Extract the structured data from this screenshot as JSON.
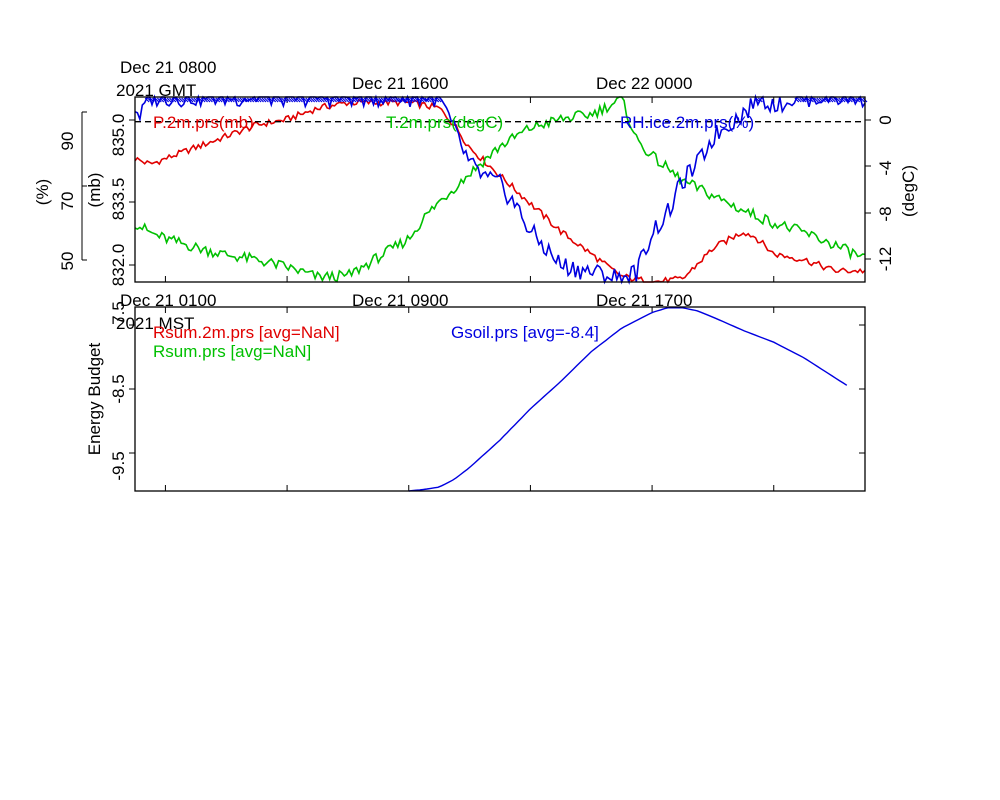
{
  "chart_data": [
    {
      "type": "line",
      "panel": "upper",
      "top_time_labels": {
        "first_line1": "Dec 21 0800",
        "first_line2": "2021 GMT",
        "second": "Dec 21 1600",
        "third": "Dec 22 0000"
      },
      "left_axis_rh": {
        "label": "(%)",
        "ticks": [
          "50",
          "70",
          "90"
        ],
        "range": [
          45,
          100
        ]
      },
      "left_axis_p": {
        "label": "(mb)",
        "ticks": [
          "832.0",
          "833.5",
          "835.0"
        ],
        "range": [
          832.0,
          835.3
        ]
      },
      "right_axis_t": {
        "label": "(degC)",
        "ticks": [
          "0",
          "-4",
          "-8",
          "-12"
        ],
        "range": [
          -13.0,
          2.0
        ]
      },
      "reference_line": {
        "value": 0,
        "axis": "degC",
        "style": "dashed"
      },
      "legend": [
        "P.2m.prs(mb)",
        "T.2m.prs(degC)",
        "RH.ice.2m.prs(%)"
      ],
      "colors": {
        "P.2m.prs(mb)": "#e00000",
        "T.2m.prs(degC)": "#00c000",
        "RH.ice.2m.prs(%)": "#0000e0"
      },
      "series": [
        {
          "name": "P.2m.prs(mb)",
          "axis": "mb",
          "x_hours_mst": [
            0,
            0.5,
            1,
            2,
            3,
            4,
            5,
            6,
            7,
            8,
            8.5,
            9,
            10,
            10.5,
            11,
            12,
            13,
            14,
            15,
            15.6,
            16,
            17,
            18,
            19,
            20,
            20.4,
            21,
            22,
            23,
            23.9
          ],
          "values": [
            834.2,
            834.1,
            834.2,
            834.4,
            834.6,
            834.8,
            834.9,
            835.1,
            835.2,
            835.2,
            835.2,
            835.2,
            835.1,
            834.8,
            834.4,
            833.9,
            833.4,
            832.9,
            832.5,
            832.25,
            832.1,
            832.0,
            832.05,
            832.6,
            832.9,
            832.8,
            832.5,
            832.4,
            832.2,
            832.2
          ]
        },
        {
          "name": "T.2m.prs(degC)",
          "axis": "degC",
          "x_hours_mst": [
            0,
            0.5,
            1,
            2,
            3,
            4,
            5,
            6,
            7,
            8,
            9,
            9.5,
            10,
            11,
            12,
            13,
            14,
            15,
            16,
            16.2,
            16.5,
            17,
            18,
            19,
            20,
            21,
            22,
            23,
            23.9
          ],
          "values": [
            -8.2,
            -9.0,
            -9.5,
            -10.2,
            -10.8,
            -11.2,
            -11.8,
            -12.6,
            -12.5,
            -11.0,
            -9.5,
            -7.8,
            -6.5,
            -4.2,
            -2.0,
            -0.5,
            0.2,
            0.6,
            1.8,
            0.5,
            -1.5,
            -2.8,
            -4.8,
            -6.0,
            -7.2,
            -8.2,
            -9.0,
            -10.0,
            -11.0
          ]
        },
        {
          "name": "RH.ice.2m.prs(%)",
          "axis": "%",
          "x_hours_mst": [
            0,
            0.2,
            0.4,
            1,
            5,
            9,
            10,
            10.5,
            11,
            11.5,
            12,
            12.5,
            13,
            14,
            15,
            16,
            16.5,
            17,
            17.5,
            18,
            18.5,
            19,
            19.5,
            20,
            20.5,
            21,
            22,
            23,
            23.9
          ],
          "values": [
            97,
            94,
            100,
            100,
            100,
            100,
            100,
            90,
            80,
            76,
            74,
            68,
            60,
            50,
            48,
            46,
            48,
            60,
            65,
            75,
            80,
            88,
            92,
            95,
            100,
            98,
            100,
            100,
            100
          ]
        }
      ]
    },
    {
      "type": "line",
      "panel": "lower",
      "top_time_labels": {
        "first_line1": "Dec 21 0100",
        "first_line2": "2021 MST",
        "second": "Dec 21 0900",
        "third": "Dec 21 1700"
      },
      "ylabel": "Energy Budget",
      "y_ticks": [
        "7.5",
        "-8.5",
        "-9.5"
      ],
      "ylim": [
        -9.9,
        -7.55
      ],
      "legend": [
        "Rsum.2m.prs [avg=NaN]",
        "Rsum.prs [avg=NaN]",
        "Gsoil.prs [avg=-8.4]"
      ],
      "colors": {
        "Rsum.2m.prs [avg=NaN]": "#e00000",
        "Rsum.prs [avg=NaN]": "#00c000",
        "Gsoil.prs [avg=-8.4]": "#0000e0"
      },
      "series": [
        {
          "name": "Gsoil.prs [avg=-8.4]",
          "x_hours_mst": [
            9,
            9.5,
            10,
            10.5,
            11,
            12,
            13,
            14,
            15,
            16,
            17,
            17.5,
            18,
            18.5,
            19,
            20,
            21,
            22,
            23,
            23.4
          ],
          "values": [
            -9.9,
            -9.88,
            -9.85,
            -9.75,
            -9.6,
            -9.25,
            -8.85,
            -8.5,
            -8.12,
            -7.82,
            -7.62,
            -7.56,
            -7.56,
            -7.6,
            -7.68,
            -7.85,
            -8.0,
            -8.2,
            -8.45,
            -8.55
          ]
        }
      ]
    }
  ]
}
